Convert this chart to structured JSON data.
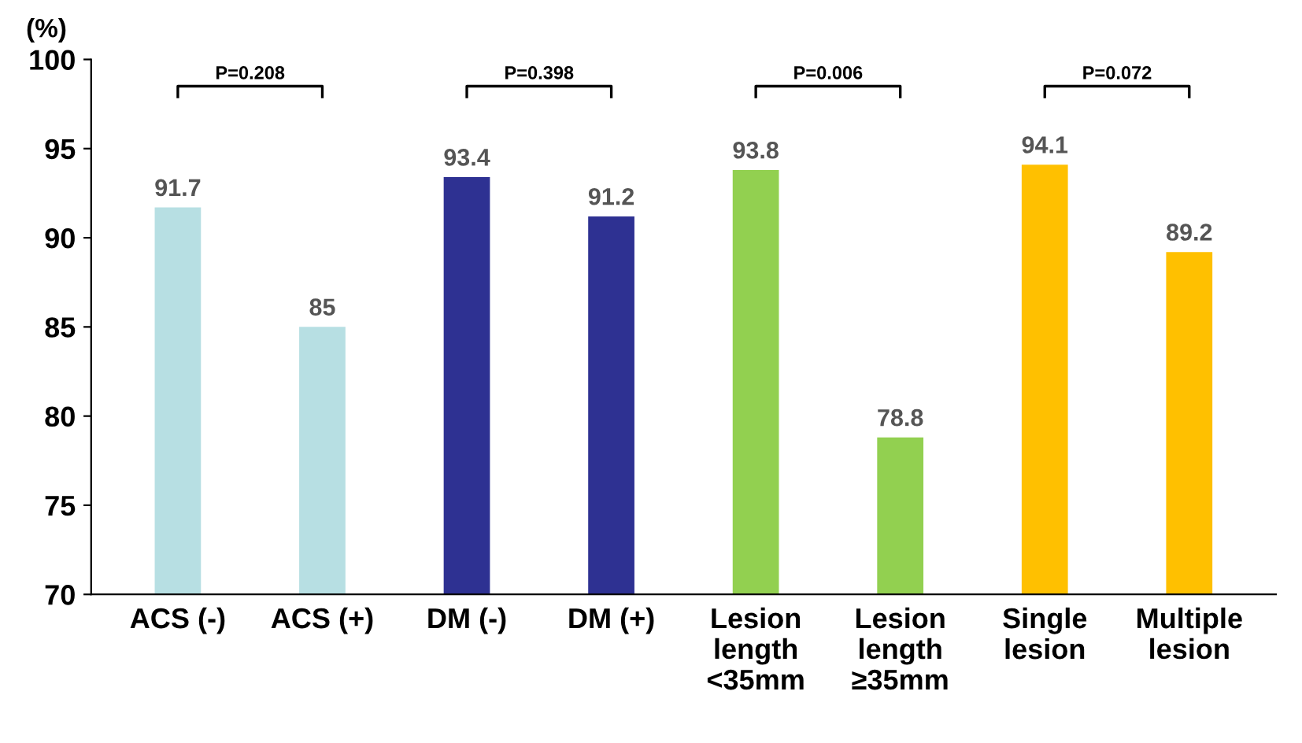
{
  "chart_data": {
    "type": "bar",
    "ylabel": "(%)",
    "categories": [
      "ACS (-)",
      "ACS (+)",
      "DM (-)",
      "DM (+)",
      "Lesion\nlength\n<35mm",
      "Lesion\nlength\n≥35mm",
      "Single\nlesion",
      "Multiple\nlesion"
    ],
    "values": [
      91.7,
      85,
      93.4,
      91.2,
      93.8,
      78.8,
      94.1,
      89.2
    ],
    "colors": [
      "#b7dfe3",
      "#b7dfe3",
      "#2e3192",
      "#2e3192",
      "#92d050",
      "#92d050",
      "#ffc000",
      "#ffc000"
    ],
    "ylim": [
      70,
      100
    ],
    "yticks": [
      70,
      75,
      80,
      85,
      90,
      95,
      100
    ],
    "grid": false,
    "legend": false,
    "data_labels": true,
    "annotations": [
      "P=0.208",
      "P=0.398",
      "P=0.006",
      "P=0.072"
    ]
  }
}
